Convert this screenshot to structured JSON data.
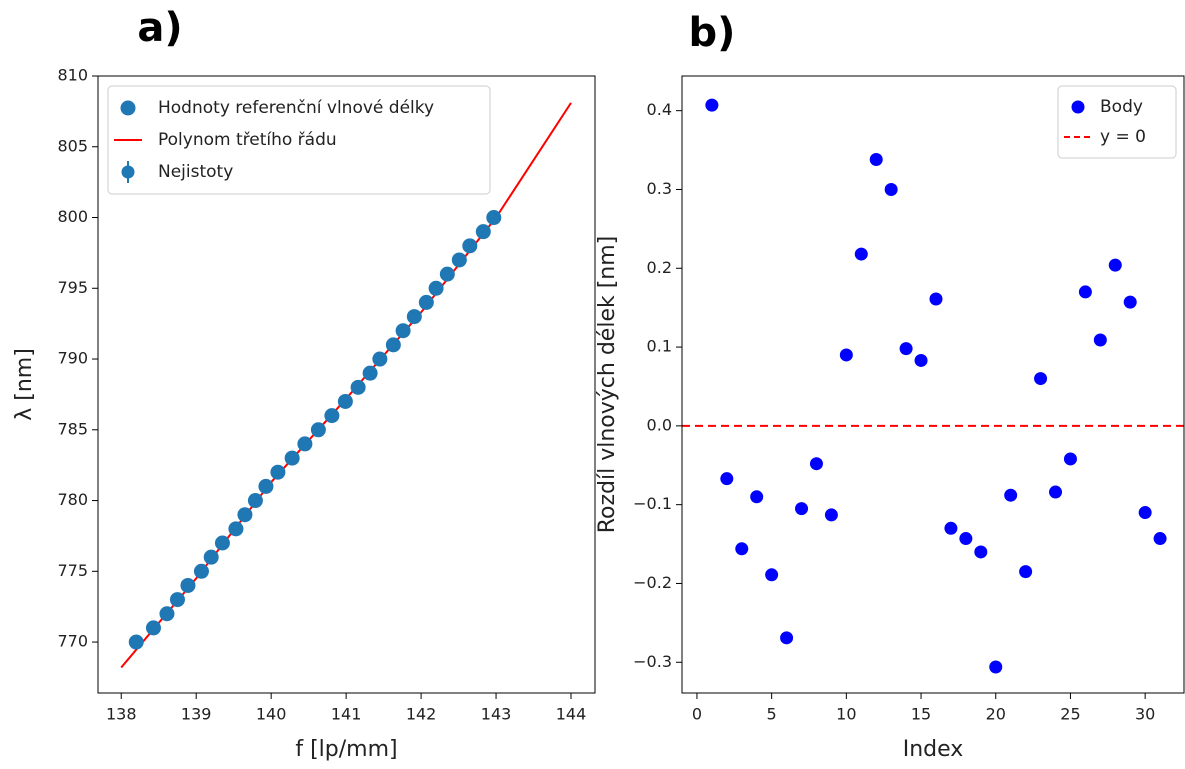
{
  "chart_data": [
    {
      "type": "scatter",
      "panel_label": "a)",
      "xlabel": "f [lp/mm]",
      "ylabel": "λ [nm]",
      "xlim": [
        137.69,
        144.32
      ],
      "ylim": [
        766.4,
        810
      ],
      "xticks": [
        138,
        139,
        140,
        141,
        142,
        143,
        144
      ],
      "yticks": [
        770,
        775,
        780,
        785,
        790,
        795,
        800,
        805,
        810
      ],
      "legend": "upper left",
      "series": [
        {
          "name": "Hodnoty referenční vlnové délky",
          "type": "scatter",
          "color": "#1f77b4",
          "x": [
            138.2,
            138.43,
            138.61,
            138.75,
            138.89,
            139.07,
            139.2,
            139.35,
            139.53,
            139.65,
            139.79,
            139.93,
            140.09,
            140.28,
            140.45,
            140.63,
            140.81,
            140.99,
            141.16,
            141.32,
            141.45,
            141.63,
            141.76,
            141.91,
            142.07,
            142.2,
            142.35,
            142.51,
            142.65,
            142.83,
            142.97
          ],
          "values": [
            770,
            771,
            772,
            773,
            774,
            775,
            776,
            777,
            778,
            779,
            780,
            781,
            782,
            783,
            784,
            785,
            786,
            787,
            788,
            789,
            790,
            791,
            792,
            793,
            794,
            795,
            796,
            797,
            798,
            799,
            800
          ]
        },
        {
          "name": "Polynom třetího řádu",
          "type": "line",
          "color": "#ff0000",
          "x": [
            138,
            139,
            140,
            141,
            142,
            143,
            144
          ],
          "values": [
            768.2,
            774.5,
            781.3,
            787.2,
            793.3,
            800,
            808.1
          ]
        },
        {
          "name": "Nejistoty",
          "type": "errorbar",
          "color": "#1f77b4"
        }
      ]
    },
    {
      "type": "scatter",
      "panel_label": "b)",
      "xlabel": "Index",
      "ylabel": "Rozdíl vlnových délek [nm]",
      "xlim": [
        -1,
        32.6
      ],
      "ylim": [
        -0.339,
        0.444
      ],
      "xticks": [
        0,
        5,
        10,
        15,
        20,
        25,
        30
      ],
      "yticks": [
        {
          "value": -0.3,
          "label": "−0.3"
        },
        {
          "value": -0.2,
          "label": "−0.2"
        },
        {
          "value": -0.1,
          "label": "−0.1"
        },
        {
          "value": 0,
          "label": "0.0"
        },
        0.1,
        0.2,
        0.3,
        0.4
      ],
      "legend": "upper right",
      "series": [
        {
          "name": "Body",
          "type": "scatter",
          "color": "#0000ff",
          "x": [
            1,
            2,
            3,
            4,
            5,
            6,
            7,
            8,
            9,
            10,
            11,
            12,
            13,
            14,
            15,
            16,
            17,
            18,
            19,
            20,
            21,
            22,
            23,
            24,
            25,
            26,
            27,
            28,
            29,
            30,
            31
          ],
          "values": [
            0.407,
            -0.067,
            -0.156,
            -0.09,
            -0.189,
            -0.269,
            -0.105,
            -0.048,
            -0.113,
            0.09,
            0.218,
            0.338,
            0.3,
            0.098,
            0.083,
            0.161,
            -0.13,
            -0.143,
            -0.16,
            -0.306,
            -0.088,
            -0.185,
            0.06,
            -0.084,
            -0.042,
            0.17,
            0.109,
            0.204,
            0.157,
            -0.11,
            -0.143
          ]
        },
        {
          "name": "y = 0",
          "type": "hline",
          "color": "#ff0000",
          "dashed": true,
          "value": 0
        }
      ]
    }
  ]
}
